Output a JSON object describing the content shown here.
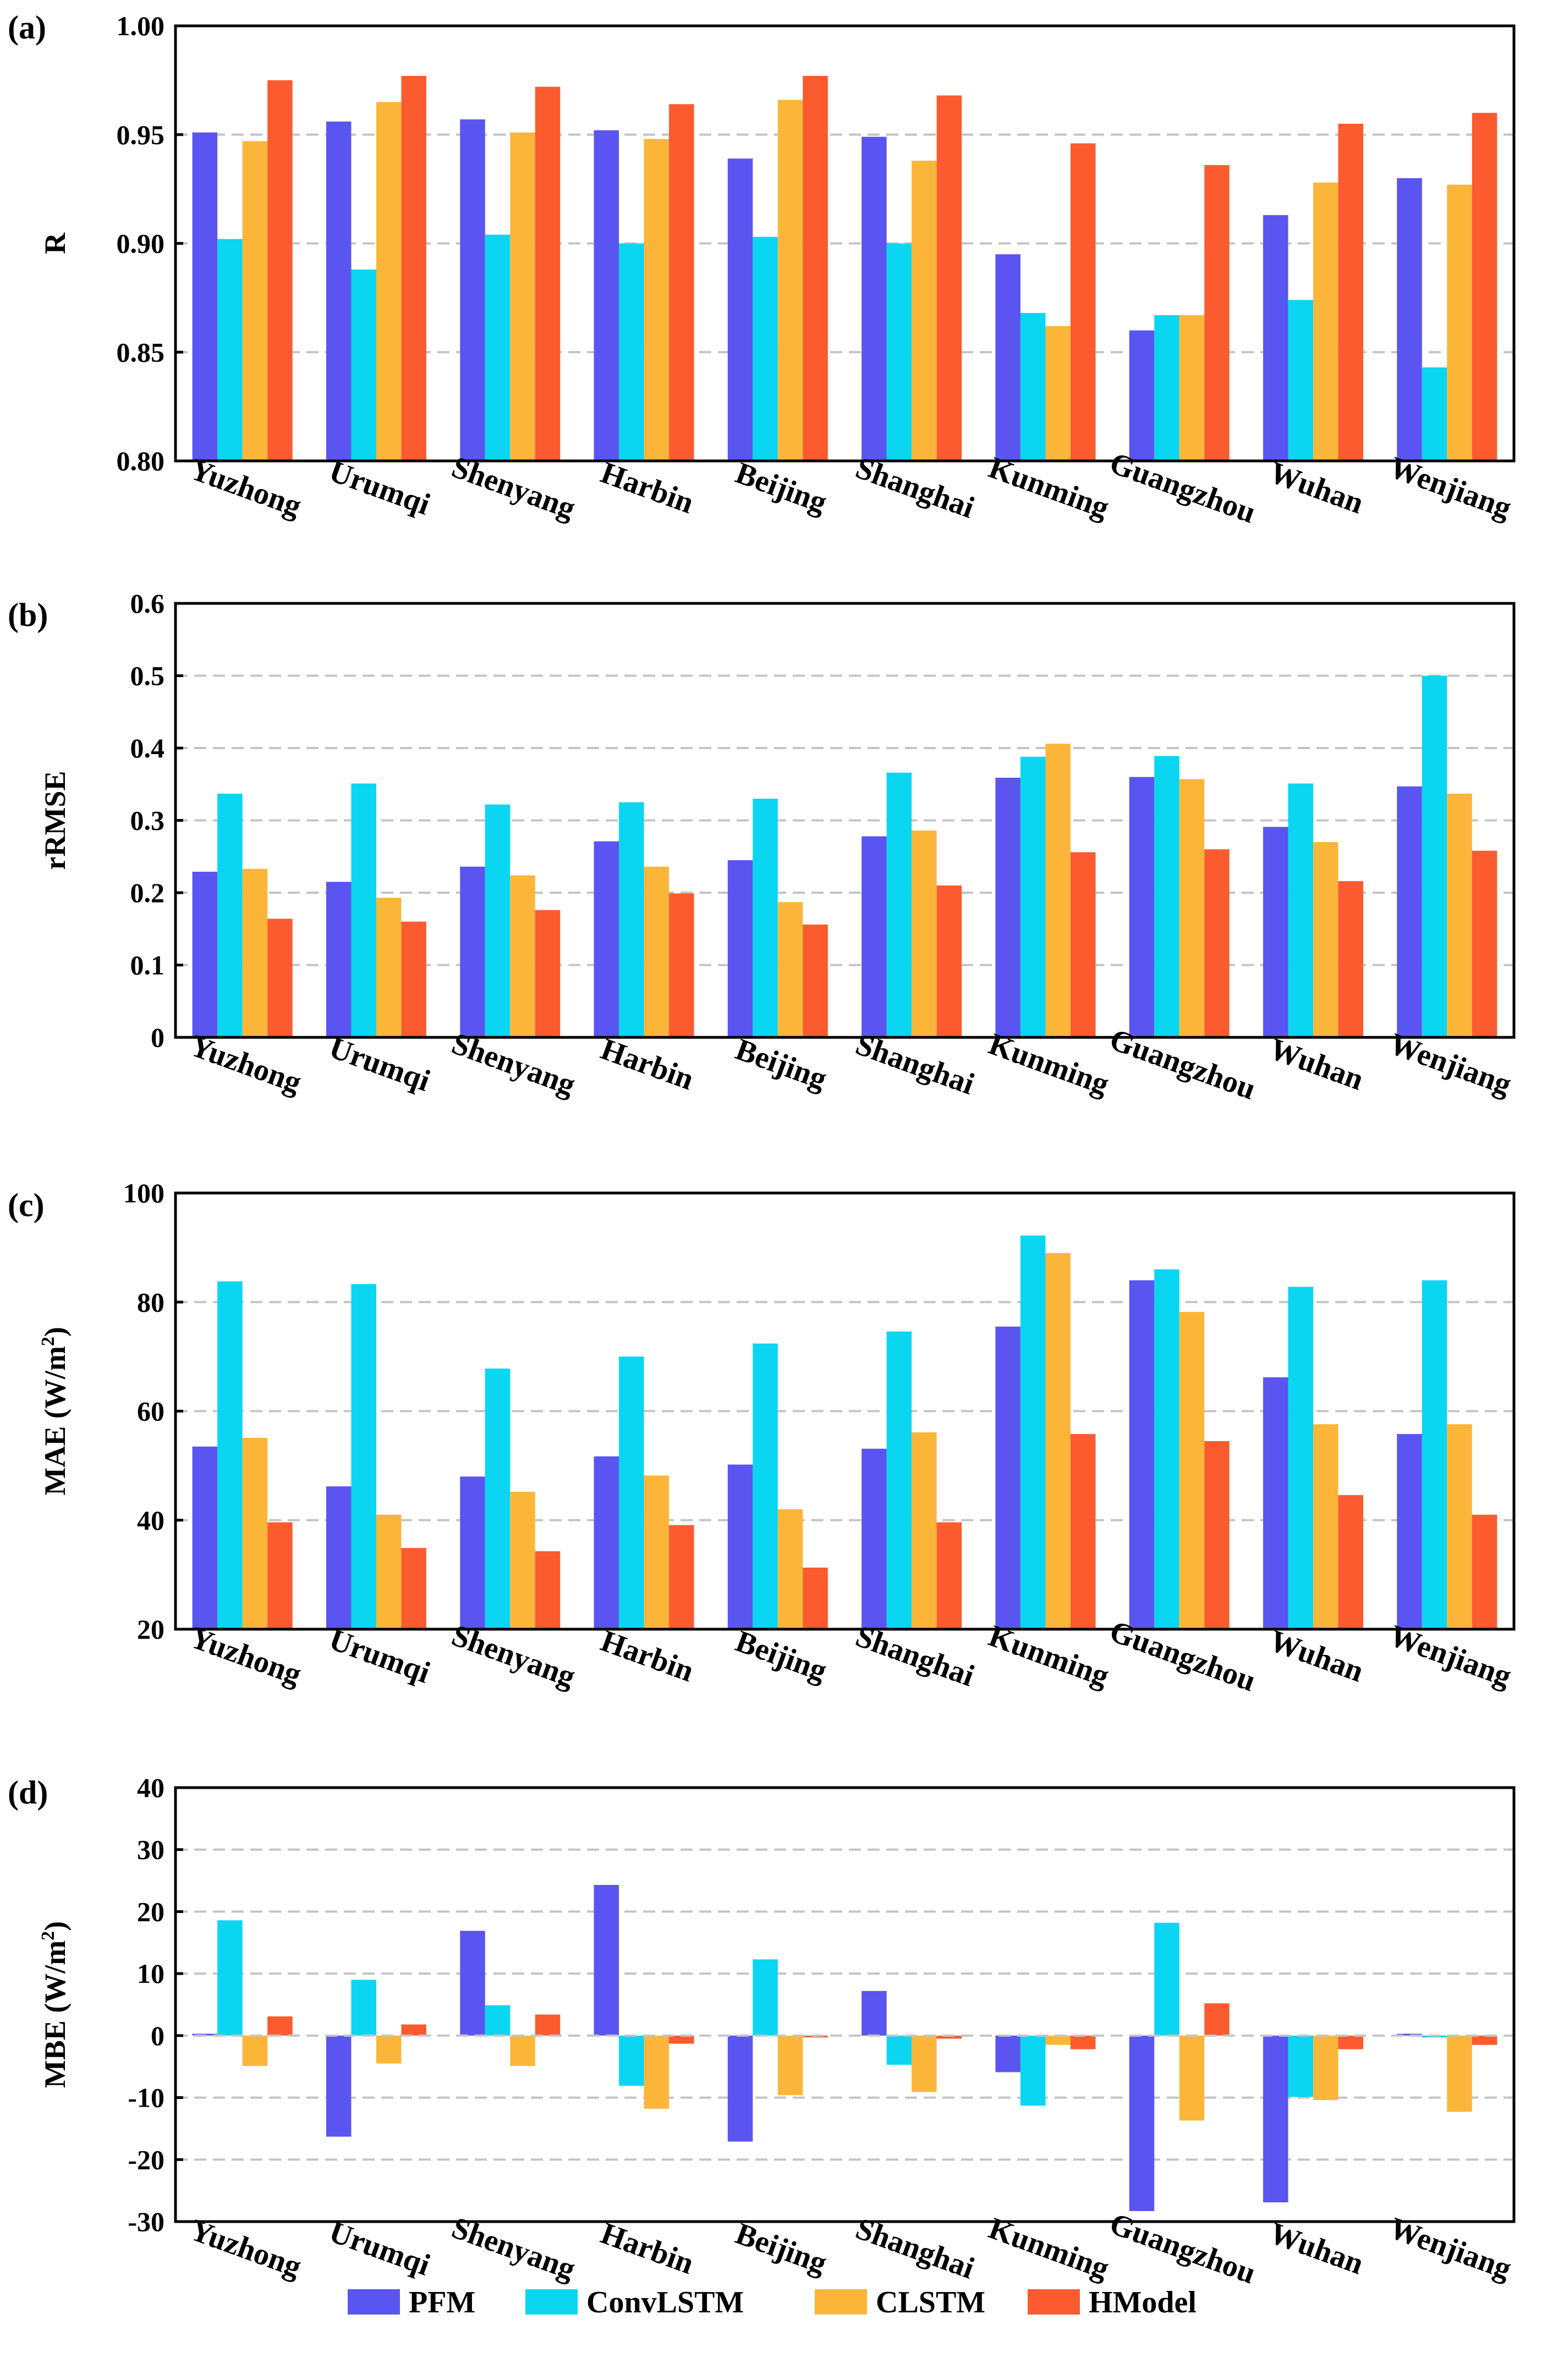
{
  "legend": {
    "position": "bottom-center",
    "entries": [
      {
        "name": "PFM",
        "color": "#5A55F0"
      },
      {
        "name": "ConvLSTM",
        "color": "#0AD6F2"
      },
      {
        "name": "CLSTM",
        "color": "#FBB63A"
      },
      {
        "name": "HModel",
        "color": "#FB5B2E"
      }
    ]
  },
  "chart_data": [
    {
      "panel": "(a)",
      "type": "bar",
      "ylabel": "R",
      "ylim": [
        0.8,
        1.0
      ],
      "yticks": [
        "0.80",
        "0.85",
        "0.90",
        "0.95",
        "1.00"
      ],
      "grid": "horizontal dashed",
      "categories": [
        "Yuzhong",
        "Urumqi",
        "Shenyang",
        "Harbin",
        "Beijing",
        "Shanghai",
        "Kunming",
        "Guangzhou",
        "Wuhan",
        "Wenjiang"
      ],
      "series": [
        {
          "name": "PFM",
          "values": [
            0.951,
            0.956,
            0.957,
            0.952,
            0.939,
            0.949,
            0.895,
            0.86,
            0.913,
            0.93
          ]
        },
        {
          "name": "ConvLSTM",
          "values": [
            0.902,
            0.888,
            0.904,
            0.9,
            0.903,
            0.9,
            0.868,
            0.867,
            0.874,
            0.843
          ]
        },
        {
          "name": "CLSTM",
          "values": [
            0.947,
            0.965,
            0.951,
            0.948,
            0.966,
            0.938,
            0.862,
            0.867,
            0.928,
            0.927
          ]
        },
        {
          "name": "HModel",
          "values": [
            0.975,
            0.977,
            0.972,
            0.964,
            0.977,
            0.968,
            0.946,
            0.936,
            0.955,
            0.96
          ]
        }
      ]
    },
    {
      "panel": "(b)",
      "type": "bar",
      "ylabel": "rRMSE",
      "ylim": [
        0,
        0.6
      ],
      "yticks": [
        "0",
        "0.1",
        "0.2",
        "0.3",
        "0.4",
        "0.5",
        "0.6"
      ],
      "grid": "horizontal dashed",
      "categories": [
        "Yuzhong",
        "Urumqi",
        "Shenyang",
        "Harbin",
        "Beijing",
        "Shanghai",
        "Kunming",
        "Guangzhou",
        "Wuhan",
        "Wenjiang"
      ],
      "series": [
        {
          "name": "PFM",
          "values": [
            0.229,
            0.215,
            0.236,
            0.271,
            0.245,
            0.278,
            0.359,
            0.36,
            0.291,
            0.347
          ]
        },
        {
          "name": "ConvLSTM",
          "values": [
            0.337,
            0.351,
            0.322,
            0.325,
            0.33,
            0.366,
            0.388,
            0.389,
            0.351,
            0.5
          ]
        },
        {
          "name": "CLSTM",
          "values": [
            0.233,
            0.193,
            0.224,
            0.236,
            0.187,
            0.286,
            0.406,
            0.357,
            0.27,
            0.337
          ]
        },
        {
          "name": "HModel",
          "values": [
            0.164,
            0.16,
            0.176,
            0.199,
            0.156,
            0.21,
            0.256,
            0.26,
            0.216,
            0.258
          ]
        }
      ]
    },
    {
      "panel": "(c)",
      "type": "bar",
      "ylabel": "MAE (W/m",
      "ylabel_sup": "2",
      "ylabel_tail": ")",
      "ylim": [
        20,
        100
      ],
      "yticks": [
        "20",
        "40",
        "60",
        "80",
        "100"
      ],
      "grid": "horizontal dashed",
      "categories": [
        "Yuzhong",
        "Urumqi",
        "Shenyang",
        "Harbin",
        "Beijing",
        "Shanghai",
        "Kunming",
        "Guangzhou",
        "Wuhan",
        "Wenjiang"
      ],
      "series": [
        {
          "name": "PFM",
          "values": [
            53.5,
            46.2,
            48.0,
            51.7,
            50.2,
            53.1,
            75.5,
            84.0,
            66.2,
            55.8
          ]
        },
        {
          "name": "ConvLSTM",
          "values": [
            83.8,
            83.3,
            67.8,
            70.0,
            72.4,
            74.6,
            92.2,
            86.0,
            82.8,
            84.0
          ]
        },
        {
          "name": "CLSTM",
          "values": [
            55.1,
            41.0,
            45.2,
            48.2,
            42.0,
            56.1,
            89.0,
            78.2,
            57.6,
            57.6
          ]
        },
        {
          "name": "HModel",
          "values": [
            39.6,
            34.9,
            34.3,
            39.1,
            31.3,
            39.6,
            55.8,
            54.5,
            44.6,
            41.0
          ]
        }
      ]
    },
    {
      "panel": "(d)",
      "type": "bar",
      "ylabel": "MBE (W/m",
      "ylabel_sup": "2",
      "ylabel_tail": ")",
      "ylim": [
        -30,
        40
      ],
      "yticks": [
        "-30",
        "-20",
        "-10",
        "0",
        "10",
        "20",
        "30",
        "40"
      ],
      "grid": "horizontal dashed",
      "categories": [
        "Yuzhong",
        "Urumqi",
        "Shenyang",
        "Harbin",
        "Beijing",
        "Shanghai",
        "Kunming",
        "Guangzhou",
        "Wuhan",
        "Wenjiang"
      ],
      "series": [
        {
          "name": "PFM",
          "values": [
            0.3,
            -16.3,
            16.9,
            24.3,
            -17.1,
            7.2,
            -5.9,
            -28.3,
            -26.9,
            0.3
          ]
        },
        {
          "name": "ConvLSTM",
          "values": [
            18.6,
            9.0,
            4.9,
            -8.1,
            12.3,
            -4.7,
            -11.3,
            18.2,
            -9.9,
            -0.3
          ]
        },
        {
          "name": "CLSTM",
          "values": [
            -4.9,
            -4.5,
            -4.9,
            -11.8,
            -9.6,
            -9.1,
            -1.5,
            -13.7,
            -10.4,
            -12.3
          ]
        },
        {
          "name": "HModel",
          "values": [
            3.1,
            1.8,
            3.4,
            -1.3,
            -0.3,
            -0.5,
            -2.2,
            5.2,
            -2.2,
            -1.5
          ]
        }
      ]
    }
  ]
}
